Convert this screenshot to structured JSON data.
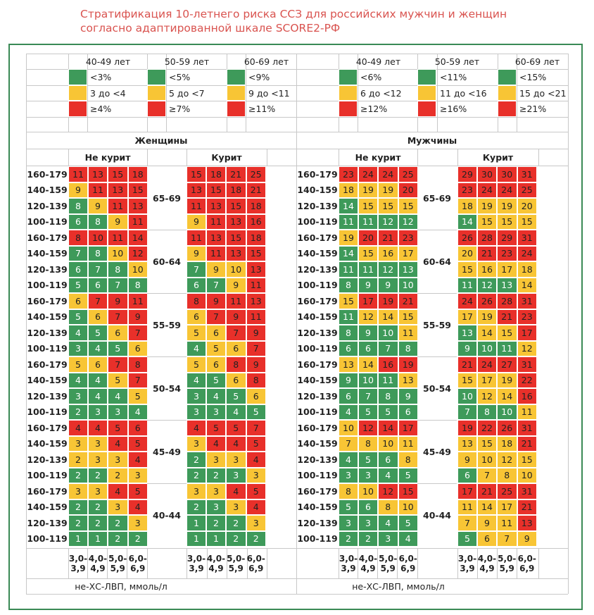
{
  "title": {
    "line1": "Стратификация 10-летнего риска ССЗ для российских мужчин и женщин",
    "line2": "согласно адаптированной шкале SCORE2-РФ"
  },
  "colors": {
    "green": "#3e9a5a",
    "yellow": "#f8c535",
    "red": "#e8302a",
    "frame": "#3a8a55",
    "title": "#d9534f"
  },
  "legend": {
    "women": [
      {
        "age": "40-49 лет",
        "low": "<3%",
        "mid": "3 до <4",
        "high": "≥4%"
      },
      {
        "age": "50-59 лет",
        "low": "<5%",
        "mid": "5 до <7",
        "high": "≥7%"
      },
      {
        "age": "60-69 лет",
        "low": "<9%",
        "mid": "9 до <11",
        "high": "≥11%"
      }
    ],
    "men": [
      {
        "age": "40-49 лет",
        "low": "<6%",
        "mid": "6 до <12",
        "high": "≥12%"
      },
      {
        "age": "50-59 лет",
        "low": "<11%",
        "mid": "11 до <16",
        "high": "≥16%"
      },
      {
        "age": "60-69 лет",
        "low": "<15%",
        "mid": "15 до <21",
        "high": "≥21%"
      }
    ]
  },
  "labels": {
    "women": "Женщины",
    "men": "Мужчины",
    "non_smoker": "Не курит",
    "smoker": "Курит",
    "axis": "не-ХС-ЛВП, ммоль/л"
  },
  "chart_data": {
    "type": "heatmap",
    "title": "Стратификация 10-летнего риска ССЗ для российских мужчин и женщин согласно адаптированной шкале SCORE2-РФ",
    "age_groups": [
      "65-69",
      "60-64",
      "55-59",
      "50-54",
      "45-49",
      "40-44"
    ],
    "sbp_rows": [
      "160-179",
      "140-159",
      "120-139",
      "100-119"
    ],
    "cholesterol_cols": [
      [
        "3,0-",
        "3,9"
      ],
      [
        "4,0-",
        "4,9"
      ],
      [
        "5,0-",
        "5,9"
      ],
      [
        "6,0-",
        "6,9"
      ]
    ],
    "xlabel": "не-ХС-ЛВП, ммоль/л",
    "panels": [
      {
        "name": "women_nonsmoker",
        "values": [
          [
            [
              11,
              13,
              15,
              18
            ],
            [
              9,
              11,
              13,
              15
            ],
            [
              8,
              9,
              11,
              13
            ],
            [
              6,
              8,
              9,
              11
            ]
          ],
          [
            [
              8,
              10,
              11,
              14
            ],
            [
              7,
              8,
              10,
              12
            ],
            [
              6,
              7,
              8,
              10
            ],
            [
              5,
              6,
              7,
              8
            ]
          ],
          [
            [
              6,
              7,
              9,
              11
            ],
            [
              5,
              6,
              7,
              9
            ],
            [
              4,
              5,
              6,
              7
            ],
            [
              3,
              4,
              5,
              6
            ]
          ],
          [
            [
              5,
              6,
              7,
              8
            ],
            [
              4,
              4,
              5,
              7
            ],
            [
              3,
              4,
              4,
              5
            ],
            [
              2,
              3,
              3,
              4
            ]
          ],
          [
            [
              4,
              4,
              5,
              6
            ],
            [
              3,
              3,
              4,
              5
            ],
            [
              2,
              3,
              3,
              4
            ],
            [
              2,
              2,
              2,
              3
            ]
          ],
          [
            [
              3,
              3,
              4,
              5
            ],
            [
              2,
              2,
              3,
              4
            ],
            [
              2,
              2,
              2,
              3
            ],
            [
              1,
              1,
              2,
              2
            ]
          ]
        ],
        "colors": [
          [
            "rrrr",
            "yrrr",
            "gyrr",
            "ggyr"
          ],
          [
            "rrrr",
            "ggyr",
            "gggy",
            "gggg"
          ],
          [
            "yrrr",
            "gyrr",
            "ggyr",
            "gggy"
          ],
          [
            "yyrr",
            "ggyr",
            "gggy",
            "gggg"
          ],
          [
            "rrrr",
            "yyrr",
            "yyyr",
            "ggyy"
          ],
          [
            "yyrr",
            "ggyr",
            "gggy",
            "gggg"
          ]
        ]
      },
      {
        "name": "women_smoker",
        "values": [
          [
            [
              15,
              18,
              21,
              25
            ],
            [
              13,
              15,
              18,
              21
            ],
            [
              11,
              13,
              15,
              18
            ],
            [
              9,
              11,
              13,
              16
            ]
          ],
          [
            [
              11,
              13,
              15,
              18
            ],
            [
              9,
              11,
              13,
              15
            ],
            [
              7,
              9,
              10,
              13
            ],
            [
              6,
              7,
              9,
              11
            ]
          ],
          [
            [
              8,
              9,
              11,
              13
            ],
            [
              6,
              7,
              9,
              11
            ],
            [
              5,
              6,
              7,
              9
            ],
            [
              4,
              5,
              6,
              7
            ]
          ],
          [
            [
              5,
              6,
              8,
              9
            ],
            [
              4,
              5,
              6,
              8
            ],
            [
              3,
              4,
              5,
              6
            ],
            [
              3,
              3,
              4,
              5
            ]
          ],
          [
            [
              4,
              5,
              5,
              7
            ],
            [
              3,
              4,
              4,
              5
            ],
            [
              2,
              3,
              3,
              4
            ],
            [
              2,
              2,
              3,
              3
            ]
          ],
          [
            [
              3,
              3,
              4,
              5
            ],
            [
              2,
              3,
              3,
              4
            ],
            [
              1,
              2,
              2,
              3
            ],
            [
              1,
              1,
              2,
              2
            ]
          ]
        ],
        "colors": [
          [
            "rrrr",
            "rrrr",
            "rrrr",
            "yrrr"
          ],
          [
            "rrrr",
            "yrrr",
            "gyyr",
            "ggyr"
          ],
          [
            "rrrr",
            "yrrr",
            "yyrr",
            "gyyr"
          ],
          [
            "yyrr",
            "ggyr",
            "gggy",
            "gggg"
          ],
          [
            "rrrr",
            "yrrr",
            "gyyr",
            "gggy"
          ],
          [
            "yyrr",
            "ggyr",
            "gggy",
            "gggg"
          ]
        ]
      },
      {
        "name": "men_nonsmoker",
        "values": [
          [
            [
              23,
              24,
              24,
              25
            ],
            [
              18,
              19,
              19,
              20
            ],
            [
              14,
              15,
              15,
              15
            ],
            [
              11,
              11,
              12,
              12
            ]
          ],
          [
            [
              19,
              20,
              21,
              23
            ],
            [
              14,
              15,
              16,
              17
            ],
            [
              11,
              11,
              12,
              13
            ],
            [
              8,
              9,
              9,
              10
            ]
          ],
          [
            [
              15,
              17,
              19,
              21
            ],
            [
              11,
              12,
              14,
              15
            ],
            [
              8,
              9,
              10,
              11
            ],
            [
              6,
              6,
              7,
              8
            ]
          ],
          [
            [
              13,
              14,
              16,
              19
            ],
            [
              9,
              10,
              11,
              13
            ],
            [
              6,
              7,
              8,
              9
            ],
            [
              4,
              5,
              5,
              6
            ]
          ],
          [
            [
              10,
              12,
              14,
              17
            ],
            [
              7,
              8,
              10,
              11
            ],
            [
              4,
              5,
              6,
              8
            ],
            [
              3,
              3,
              4,
              5
            ]
          ],
          [
            [
              8,
              10,
              12,
              15
            ],
            [
              5,
              6,
              8,
              10
            ],
            [
              3,
              3,
              4,
              5
            ],
            [
              2,
              2,
              3,
              4
            ]
          ]
        ],
        "colors": [
          [
            "rrrr",
            "yyyr",
            "gyyy",
            "gggg"
          ],
          [
            "yrrr",
            "gyyy",
            "gggg",
            "gggg"
          ],
          [
            "yrrr",
            "gyyy",
            "gggy",
            "gggg"
          ],
          [
            "yyrr",
            "gggy",
            "gggg",
            "gggg"
          ],
          [
            "yrrr",
            "yyyy",
            "gggy",
            "gggg"
          ],
          [
            "yyrr",
            "ggyy",
            "gggg",
            "gggg"
          ]
        ]
      },
      {
        "name": "men_smoker",
        "values": [
          [
            [
              29,
              30,
              30,
              31
            ],
            [
              23,
              24,
              24,
              25
            ],
            [
              18,
              19,
              19,
              20
            ],
            [
              14,
              15,
              15,
              15
            ]
          ],
          [
            [
              26,
              28,
              29,
              31
            ],
            [
              20,
              21,
              23,
              24
            ],
            [
              15,
              16,
              17,
              18
            ],
            [
              11,
              12,
              13,
              14
            ]
          ],
          [
            [
              24,
              26,
              28,
              31
            ],
            [
              17,
              19,
              21,
              23
            ],
            [
              13,
              14,
              15,
              17
            ],
            [
              9,
              10,
              11,
              12
            ]
          ],
          [
            [
              21,
              24,
              27,
              31
            ],
            [
              15,
              17,
              19,
              22
            ],
            [
              10,
              12,
              14,
              16
            ],
            [
              7,
              8,
              10,
              11
            ]
          ],
          [
            [
              19,
              22,
              26,
              31
            ],
            [
              13,
              15,
              18,
              21
            ],
            [
              9,
              10,
              12,
              15
            ],
            [
              6,
              7,
              8,
              10
            ]
          ],
          [
            [
              17,
              21,
              25,
              31
            ],
            [
              11,
              14,
              17,
              21
            ],
            [
              7,
              9,
              11,
              13
            ],
            [
              5,
              6,
              7,
              9
            ]
          ]
        ],
        "colors": [
          [
            "rrrr",
            "rrrr",
            "yyyy",
            "gyyy"
          ],
          [
            "rrrr",
            "yrrr",
            "yyyy",
            "gggy"
          ],
          [
            "rrrr",
            "yyrr",
            "gyyr",
            "gggy"
          ],
          [
            "rrrr",
            "yyyr",
            "gyyr",
            "gggy"
          ],
          [
            "rrrr",
            "yyyr",
            "yyyy",
            "gyyy"
          ],
          [
            "rrrr",
            "yyyr",
            "yyyr",
            "gyyy"
          ]
        ]
      }
    ]
  }
}
